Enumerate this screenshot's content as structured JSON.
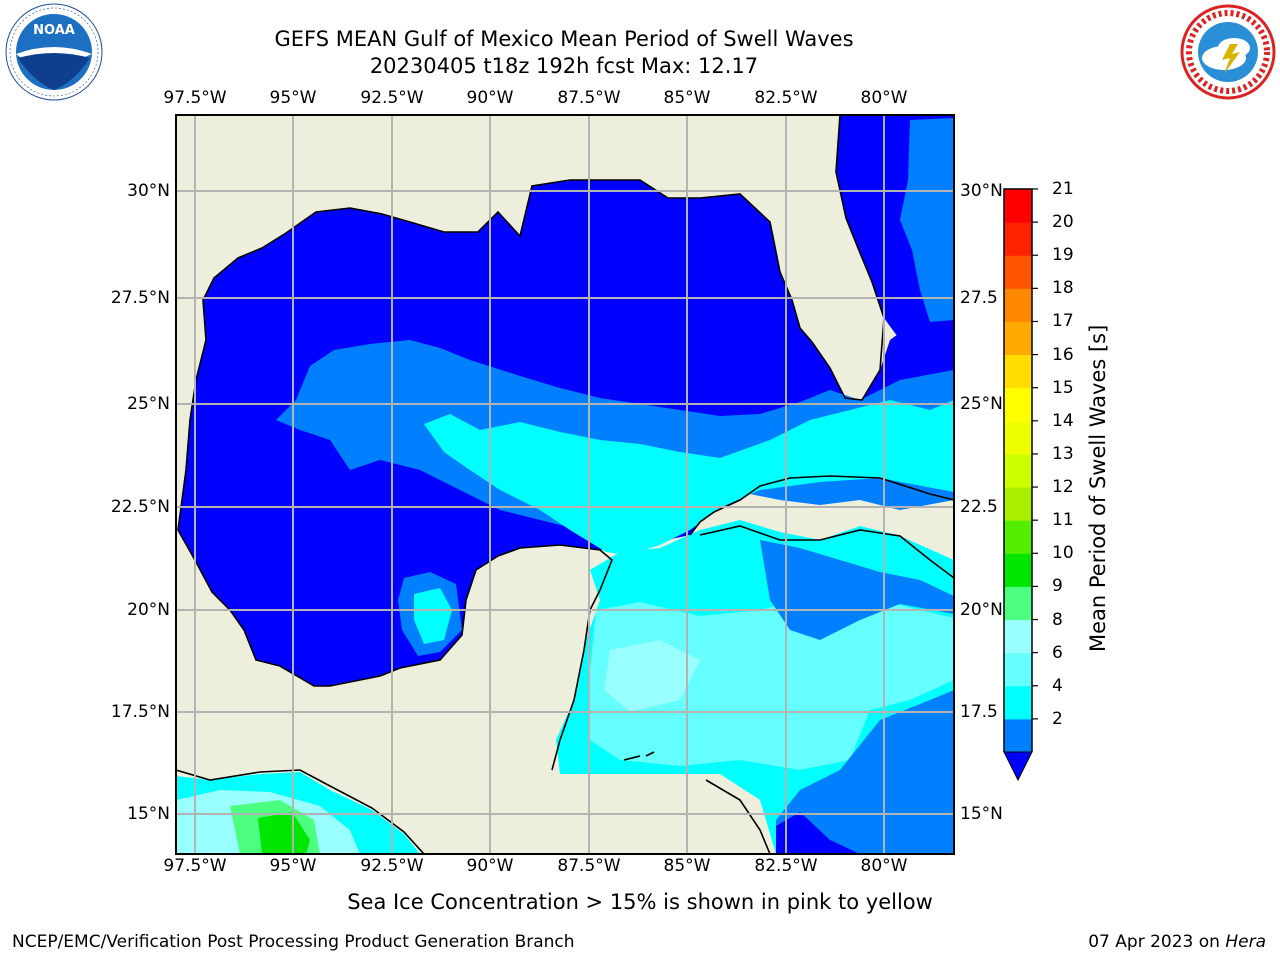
{
  "header": {
    "title_line1": "GEFS MEAN Gulf of Mexico Mean Period of Swell Waves",
    "title_line2": "20230405 t18z 192h fcst   Max: 12.17"
  },
  "logos": {
    "left": "NOAA",
    "left_ring_text": "NATIONAL OCEANIC AND ATMOSPHERIC ADMINISTRATION · U.S. DEPARTMENT OF COMMERCE",
    "right_ring_text": "NATIONAL WEATHER SERVICE"
  },
  "chart_data": {
    "type": "heatmap",
    "subtype": "filled contour map",
    "region": "Gulf of Mexico",
    "variable": "Mean Period of Swell Waves",
    "max_value": 12.17,
    "lon_ticks": [
      "97.5°W",
      "95°W",
      "92.5°W",
      "90°W",
      "87.5°W",
      "85°W",
      "82.5°W",
      "80°W"
    ],
    "lat_ticks_left": [
      "30°N",
      "27.5°N",
      "25°N",
      "22.5°N",
      "20°N",
      "17.5°N",
      "15°N"
    ],
    "lat_ticks_right": [
      "30°N",
      "27.5",
      "25°N",
      "22.5",
      "20°N",
      "17.5",
      "15°N"
    ],
    "lon_range": [
      -98,
      -78.2
    ],
    "lat_range": [
      14,
      32
    ],
    "grid": true,
    "colorbar": {
      "label": "Mean Period of Swell Waves [s]",
      "ticks": [
        "21",
        "20",
        "19",
        "18",
        "17",
        "16",
        "15",
        "14",
        "13",
        "12",
        "11",
        "10",
        "9",
        "8",
        "6",
        "4",
        "2"
      ],
      "levels": [
        2,
        4,
        6,
        8,
        9,
        10,
        11,
        12,
        13,
        14,
        15,
        16,
        17,
        18,
        19,
        20,
        21
      ],
      "colors": [
        "#0080ff",
        "#00ffff",
        "#66ffff",
        "#99ffff",
        "#4dff80",
        "#00e600",
        "#55ee00",
        "#aaee00",
        "#ccff00",
        "#eeff00",
        "#ffff00",
        "#ffdd00",
        "#ffaa00",
        "#ff8800",
        "#ff5500",
        "#ff2200",
        "#ff0000"
      ],
      "below_color": "#0000ff",
      "extend": "min"
    },
    "colors": {
      "land": "#eeeedd",
      "period_lt_2": "#0000ff",
      "period_2_4": "#0080ff",
      "period_4_6": "#00ffff",
      "period_6_8": "#66ffff",
      "period_8_9": "#99ffff",
      "period_9_10": "#4dff80",
      "period_10_11": "#00e600"
    }
  },
  "footer": {
    "note": "Sea Ice Concentration > 15% is shown in pink to yellow",
    "left": "NCEP/EMC/Verification Post Processing Product Generation Branch",
    "right_date": "07 Apr 2023 on ",
    "right_host": "Hera"
  }
}
